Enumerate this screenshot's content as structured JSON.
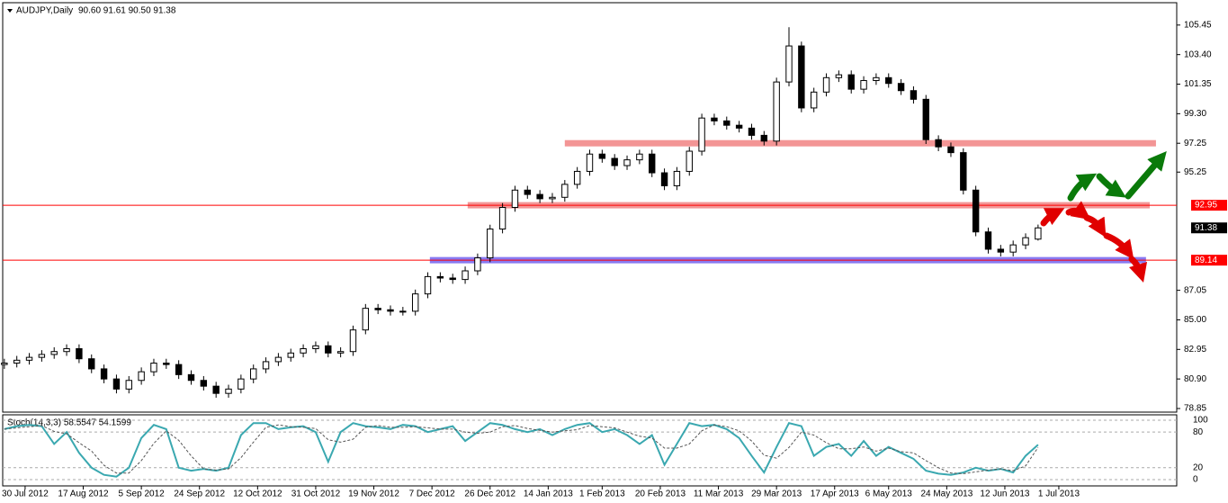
{
  "chart_data": [
    {
      "type": "candlestick",
      "title": "AUDJPY,Daily",
      "subtitle": "90.60 91.61 90.50 91.38",
      "x": [
        0,
        3,
        6,
        9,
        12,
        15,
        18,
        21,
        24,
        27,
        30,
        33,
        36,
        39,
        42,
        45,
        48,
        51,
        54,
        57,
        60,
        63,
        66,
        69,
        72,
        75,
        78,
        81,
        84,
        87,
        90,
        93,
        96,
        99,
        102,
        105,
        108,
        111,
        114,
        117,
        120,
        123,
        126,
        129,
        132,
        135,
        138,
        141,
        144,
        147,
        150,
        153,
        156,
        159,
        162,
        165,
        168,
        171,
        174,
        177,
        180,
        183,
        186,
        189,
        192,
        195,
        198,
        201,
        204,
        207,
        210,
        213,
        216,
        219,
        222,
        225,
        228,
        231,
        234,
        237,
        240,
        243,
        246,
        249
      ],
      "open": [
        81.9,
        82.0,
        82.2,
        82.4,
        82.6,
        82.8,
        83.0,
        82.3,
        81.6,
        80.9,
        80.2,
        80.8,
        81.4,
        82.0,
        81.9,
        81.2,
        80.8,
        80.4,
        79.9,
        80.2,
        80.9,
        81.6,
        82.1,
        82.4,
        82.7,
        83.0,
        83.2,
        82.7,
        82.8,
        84.3,
        85.8,
        85.7,
        85.6,
        85.6,
        86.8,
        88.0,
        87.9,
        87.8,
        88.4,
        89.3,
        91.3,
        92.8,
        94.0,
        93.7,
        93.4,
        93.5,
        94.4,
        95.3,
        96.5,
        96.2,
        95.7,
        96.1,
        96.5,
        95.2,
        94.3,
        95.3,
        96.7,
        99.0,
        98.8,
        98.5,
        98.3,
        97.8,
        97.4,
        101.5,
        104.0,
        99.7,
        100.8,
        101.8,
        102.0,
        101.0,
        101.6,
        101.8,
        101.4,
        100.9,
        100.3,
        97.5,
        97.0,
        96.6,
        94.0,
        91.1,
        89.9,
        89.7,
        90.2,
        90.6
      ],
      "high": [
        82.3,
        82.5,
        82.7,
        82.9,
        83.1,
        83.3,
        83.3,
        82.6,
        81.9,
        81.2,
        81.1,
        81.7,
        82.3,
        82.3,
        82.2,
        81.5,
        81.1,
        80.7,
        80.5,
        81.2,
        81.9,
        82.4,
        82.7,
        83.0,
        83.3,
        83.5,
        83.5,
        83.1,
        84.6,
        86.1,
        86.1,
        86.0,
        85.9,
        87.1,
        88.3,
        88.3,
        88.2,
        88.7,
        89.6,
        91.6,
        93.1,
        94.3,
        94.3,
        94.0,
        93.8,
        94.7,
        95.6,
        96.8,
        96.8,
        96.5,
        96.4,
        96.8,
        96.8,
        95.5,
        95.6,
        97.0,
        99.3,
        99.3,
        99.1,
        98.8,
        98.6,
        98.1,
        101.8,
        105.3,
        104.3,
        101.1,
        102.1,
        102.3,
        102.3,
        101.9,
        102.1,
        102.1,
        101.7,
        101.2,
        100.6,
        97.8,
        97.3,
        96.9,
        94.3,
        91.4,
        90.2,
        90.5,
        91.0,
        91.61
      ],
      "low": [
        81.6,
        81.7,
        81.9,
        82.1,
        82.3,
        82.5,
        82.0,
        81.3,
        80.6,
        79.9,
        79.9,
        80.5,
        81.1,
        81.6,
        80.9,
        80.5,
        80.1,
        79.6,
        79.6,
        79.9,
        80.6,
        81.3,
        81.8,
        82.1,
        82.4,
        82.7,
        82.4,
        82.4,
        82.5,
        84.0,
        85.4,
        85.3,
        85.3,
        85.3,
        86.5,
        87.6,
        87.5,
        87.5,
        88.1,
        89.0,
        91.0,
        92.5,
        93.4,
        93.1,
        93.1,
        93.2,
        94.1,
        95.0,
        95.9,
        95.4,
        95.4,
        95.8,
        94.9,
        94.0,
        94.0,
        95.0,
        96.4,
        98.5,
        98.2,
        98.0,
        97.5,
        97.1,
        97.1,
        101.2,
        99.4,
        99.4,
        100.5,
        101.5,
        100.7,
        100.7,
        101.3,
        101.1,
        100.6,
        100.0,
        97.2,
        96.7,
        96.3,
        93.7,
        90.8,
        89.6,
        89.4,
        89.4,
        89.9,
        90.5
      ],
      "close": [
        82.0,
        82.2,
        82.4,
        82.6,
        82.8,
        83.0,
        82.3,
        81.6,
        80.9,
        80.2,
        80.8,
        81.4,
        82.0,
        81.9,
        81.2,
        80.8,
        80.4,
        79.9,
        80.2,
        80.9,
        81.6,
        82.1,
        82.4,
        82.7,
        83.0,
        83.2,
        82.7,
        82.8,
        84.3,
        85.8,
        85.7,
        85.6,
        85.6,
        86.8,
        88.0,
        87.9,
        87.8,
        88.4,
        89.3,
        91.3,
        92.8,
        94.0,
        93.7,
        93.4,
        93.5,
        94.4,
        95.3,
        96.5,
        96.2,
        95.7,
        96.1,
        96.5,
        95.2,
        94.3,
        95.3,
        96.7,
        99.0,
        98.8,
        98.5,
        98.3,
        97.8,
        97.4,
        101.5,
        104.0,
        99.7,
        100.8,
        101.8,
        102.0,
        101.0,
        101.6,
        101.8,
        101.4,
        100.9,
        100.3,
        97.5,
        97.0,
        96.6,
        94.0,
        91.1,
        89.9,
        89.7,
        90.2,
        90.7,
        91.38
      ],
      "xlim": [
        -0.4,
        282.4
      ],
      "xticks": [
        {
          "value": 5,
          "label": "30 Jul 2012"
        },
        {
          "value": 19,
          "label": "17 Aug 2012"
        },
        {
          "value": 33,
          "label": "5 Sep 2012"
        },
        {
          "value": 47,
          "label": "24 Sep 2012"
        },
        {
          "value": 61,
          "label": "12 Oct 2012"
        },
        {
          "value": 75,
          "label": "31 Oct 2012"
        },
        {
          "value": 89,
          "label": "19 Nov 2012"
        },
        {
          "value": 103,
          "label": "7 Dec 2012"
        },
        {
          "value": 117,
          "label": "26 Dec 2012"
        },
        {
          "value": 131,
          "label": "14 Jan 2013"
        },
        {
          "value": 144,
          "label": "1 Feb 2013"
        },
        {
          "value": 158,
          "label": "20 Feb 2013"
        },
        {
          "value": 172,
          "label": "11 Mar 2013"
        },
        {
          "value": 186,
          "label": "29 Mar 2013"
        },
        {
          "value": 200,
          "label": "17 Apr 2013"
        },
        {
          "value": 213,
          "label": "6 May 2013"
        },
        {
          "value": 227,
          "label": "24 May 2013"
        },
        {
          "value": 241,
          "label": "12 Jun 2013"
        },
        {
          "value": 254,
          "label": "1 Jul 2013"
        }
      ],
      "ylim": [
        78.6,
        107.0
      ],
      "yticks": [
        105.45,
        {
          "value": 103.4,
          "label": "103.40"
        },
        101.35,
        {
          "value": 99.3,
          "label": "99.30"
        },
        97.25,
        95.25,
        87.05,
        {
          "value": 85,
          "label": "85.00"
        },
        82.95,
        {
          "value": 80.9,
          "label": "80.90"
        },
        78.85
      ],
      "zones": [
        {
          "value": 97.25,
          "x": [
            135,
            277.4
          ],
          "color": "#f28a8a"
        },
        {
          "value": 92.95,
          "x": [
            111.6,
            275.9
          ],
          "color": "#f28a8a"
        },
        {
          "value": 89.14,
          "x": [
            102.5,
            275
          ],
          "color": "#7b6cf0"
        }
      ],
      "marked_levels": [
        92.95,
        89.14
      ],
      "level_color": "#ff0000",
      "last_price": 91.38
    },
    {
      "type": "stochastic",
      "title": "Stoch(14,3,3) 58.5547 54.1599",
      "series": [
        {
          "color": "#3aa8b0",
          "values": [
            85,
            90,
            92,
            90,
            60,
            80,
            45,
            20,
            8,
            5,
            20,
            70,
            92,
            85,
            20,
            15,
            18,
            15,
            20,
            75,
            95,
            95,
            85,
            88,
            90,
            80,
            30,
            80,
            95,
            90,
            88,
            85,
            92,
            90,
            80,
            85,
            90,
            65,
            80,
            95,
            92,
            85,
            80,
            85,
            75,
            85,
            92,
            95,
            80,
            85,
            75,
            60,
            75,
            25,
            60,
            95,
            90,
            92,
            85,
            70,
            40,
            12,
            55,
            95,
            90,
            40,
            55,
            60,
            40,
            65,
            40,
            55,
            45,
            35,
            15,
            10,
            8,
            12,
            20,
            15,
            18,
            12,
            40,
            58.5547
          ]
        },
        {
          "color": "#555555",
          "values": [
            85,
            87,
            89,
            91,
            81,
            77,
            62,
            48,
            24,
            11,
            11,
            32,
            61,
            82,
            66,
            40,
            18,
            16,
            18,
            37,
            63,
            88,
            92,
            89,
            88,
            86,
            67,
            63,
            68,
            88,
            91,
            88,
            88,
            89,
            87,
            85,
            85,
            80,
            78,
            80,
            89,
            91,
            86,
            83,
            80,
            82,
            84,
            91,
            89,
            87,
            80,
            73,
            70,
            53,
            53,
            60,
            82,
            92,
            89,
            82,
            65,
            41,
            36,
            54,
            80,
            75,
            62,
            52,
            52,
            55,
            48,
            53,
            47,
            45,
            32,
            20,
            11,
            10,
            13,
            16,
            18,
            15,
            23,
            54.1599
          ]
        }
      ],
      "ylim": [
        -10.6,
        109
      ],
      "yticks": [
        100,
        80,
        20,
        0
      ]
    }
  ]
}
